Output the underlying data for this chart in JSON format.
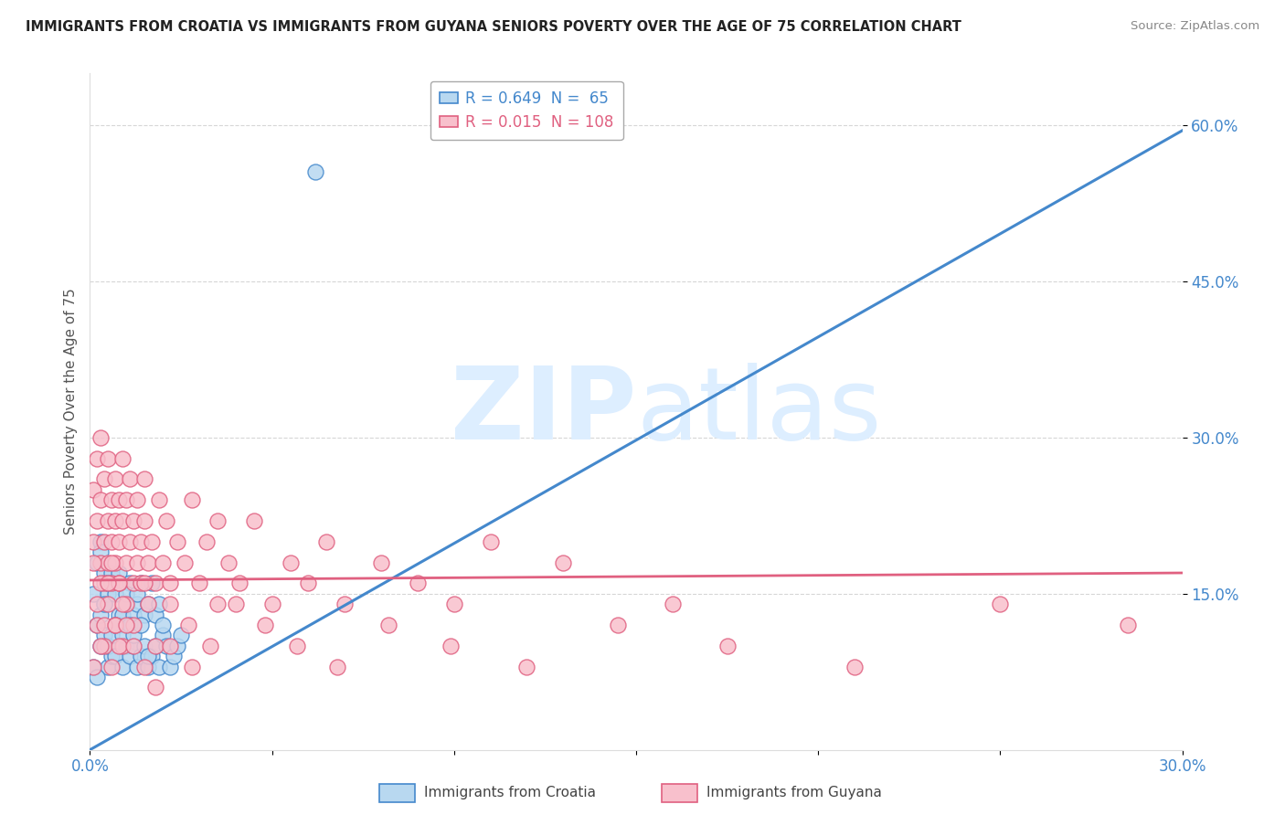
{
  "title": "IMMIGRANTS FROM CROATIA VS IMMIGRANTS FROM GUYANA SENIORS POVERTY OVER THE AGE OF 75 CORRELATION CHART",
  "source": "Source: ZipAtlas.com",
  "ylabel": "Seniors Poverty Over the Age of 75",
  "xlim": [
    0.0,
    0.3
  ],
  "ylim": [
    0.0,
    0.65
  ],
  "legend_croatia": "Immigrants from Croatia",
  "legend_guyana": "Immigrants from Guyana",
  "R_croatia": "0.649",
  "N_croatia": "65",
  "R_guyana": "0.015",
  "N_guyana": "108",
  "color_croatia_fill": "#b8d8f0",
  "color_croatia_edge": "#4488cc",
  "color_guyana_fill": "#f8c0cc",
  "color_guyana_edge": "#e06080",
  "line_color_croatia": "#4488cc",
  "line_color_guyana": "#e06080",
  "background": "#ffffff",
  "grid_color": "#cccccc",
  "watermark_color": "#ddeeff",
  "ytick_color": "#4488cc",
  "xtick_color": "#4488cc",
  "croatia_trend_x": [
    0.0,
    0.3
  ],
  "croatia_trend_y": [
    0.0,
    0.595
  ],
  "guyana_trend_x": [
    0.0,
    0.3
  ],
  "guyana_trend_y": [
    0.163,
    0.17
  ],
  "croatia_x": [
    0.001,
    0.002,
    0.001,
    0.003,
    0.002,
    0.004,
    0.003,
    0.005,
    0.004,
    0.003,
    0.006,
    0.005,
    0.004,
    0.002,
    0.007,
    0.006,
    0.005,
    0.003,
    0.008,
    0.007,
    0.006,
    0.004,
    0.009,
    0.008,
    0.005,
    0.01,
    0.007,
    0.006,
    0.011,
    0.009,
    0.008,
    0.012,
    0.01,
    0.007,
    0.013,
    0.011,
    0.009,
    0.014,
    0.012,
    0.01,
    0.015,
    0.013,
    0.011,
    0.016,
    0.014,
    0.012,
    0.017,
    0.015,
    0.013,
    0.018,
    0.016,
    0.014,
    0.019,
    0.017,
    0.02,
    0.018,
    0.016,
    0.021,
    0.019,
    0.022,
    0.02,
    0.023,
    0.024,
    0.025,
    0.062
  ],
  "croatia_y": [
    0.08,
    0.12,
    0.15,
    0.1,
    0.18,
    0.14,
    0.2,
    0.08,
    0.17,
    0.13,
    0.09,
    0.15,
    0.11,
    0.07,
    0.12,
    0.16,
    0.1,
    0.19,
    0.13,
    0.09,
    0.17,
    0.14,
    0.08,
    0.12,
    0.16,
    0.1,
    0.15,
    0.11,
    0.09,
    0.13,
    0.17,
    0.1,
    0.14,
    0.12,
    0.08,
    0.16,
    0.11,
    0.09,
    0.13,
    0.15,
    0.1,
    0.14,
    0.12,
    0.08,
    0.16,
    0.11,
    0.09,
    0.13,
    0.15,
    0.1,
    0.14,
    0.12,
    0.08,
    0.16,
    0.11,
    0.13,
    0.09,
    0.1,
    0.14,
    0.08,
    0.12,
    0.09,
    0.1,
    0.11,
    0.555
  ],
  "guyana_x": [
    0.001,
    0.001,
    0.002,
    0.002,
    0.003,
    0.003,
    0.003,
    0.004,
    0.004,
    0.004,
    0.005,
    0.005,
    0.005,
    0.006,
    0.006,
    0.006,
    0.007,
    0.007,
    0.007,
    0.008,
    0.008,
    0.008,
    0.009,
    0.009,
    0.01,
    0.01,
    0.011,
    0.011,
    0.012,
    0.012,
    0.013,
    0.013,
    0.014,
    0.014,
    0.015,
    0.015,
    0.016,
    0.016,
    0.017,
    0.018,
    0.019,
    0.02,
    0.021,
    0.022,
    0.024,
    0.026,
    0.028,
    0.03,
    0.032,
    0.035,
    0.038,
    0.041,
    0.045,
    0.05,
    0.055,
    0.06,
    0.065,
    0.07,
    0.08,
    0.09,
    0.1,
    0.11,
    0.13,
    0.16,
    0.001,
    0.002,
    0.003,
    0.004,
    0.005,
    0.006,
    0.007,
    0.008,
    0.009,
    0.01,
    0.012,
    0.015,
    0.018,
    0.022,
    0.027,
    0.033,
    0.04,
    0.048,
    0.057,
    0.068,
    0.082,
    0.099,
    0.12,
    0.145,
    0.175,
    0.21,
    0.25,
    0.285,
    0.001,
    0.002,
    0.003,
    0.004,
    0.005,
    0.006,
    0.007,
    0.008,
    0.009,
    0.01,
    0.012,
    0.015,
    0.018,
    0.022,
    0.028,
    0.035
  ],
  "guyana_y": [
    0.2,
    0.25,
    0.22,
    0.28,
    0.18,
    0.24,
    0.3,
    0.2,
    0.26,
    0.16,
    0.22,
    0.28,
    0.18,
    0.24,
    0.2,
    0.16,
    0.26,
    0.22,
    0.18,
    0.24,
    0.2,
    0.16,
    0.22,
    0.28,
    0.18,
    0.24,
    0.2,
    0.26,
    0.16,
    0.22,
    0.18,
    0.24,
    0.2,
    0.16,
    0.26,
    0.22,
    0.18,
    0.14,
    0.2,
    0.16,
    0.24,
    0.18,
    0.22,
    0.16,
    0.2,
    0.18,
    0.24,
    0.16,
    0.2,
    0.14,
    0.18,
    0.16,
    0.22,
    0.14,
    0.18,
    0.16,
    0.2,
    0.14,
    0.18,
    0.16,
    0.14,
    0.2,
    0.18,
    0.14,
    0.08,
    0.12,
    0.16,
    0.1,
    0.14,
    0.18,
    0.12,
    0.16,
    0.1,
    0.14,
    0.12,
    0.16,
    0.1,
    0.14,
    0.12,
    0.1,
    0.14,
    0.12,
    0.1,
    0.08,
    0.12,
    0.1,
    0.08,
    0.12,
    0.1,
    0.08,
    0.14,
    0.12,
    0.18,
    0.14,
    0.1,
    0.12,
    0.16,
    0.08,
    0.12,
    0.1,
    0.14,
    0.12,
    0.1,
    0.08,
    0.06,
    0.1,
    0.08,
    0.22
  ]
}
